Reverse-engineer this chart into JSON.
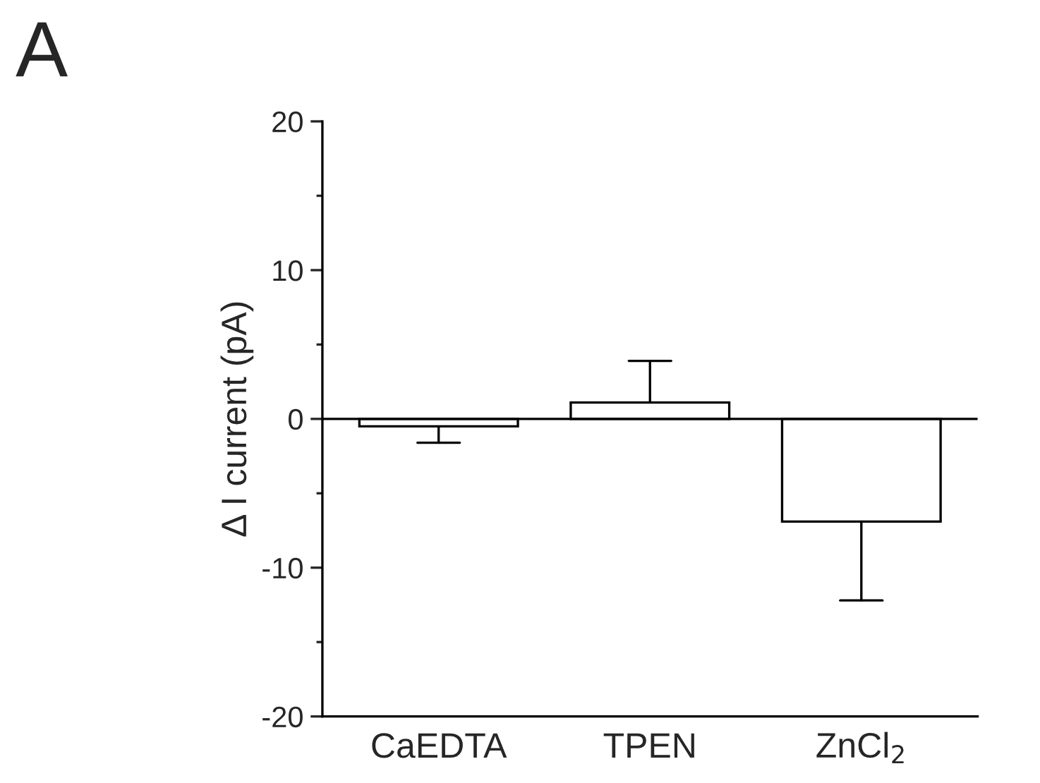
{
  "chart_data": {
    "type": "bar",
    "title": "A",
    "ylabel": "Δ I current (pA)",
    "categories": [
      "CaEDTA",
      "TPEN",
      "ZnCl$_{2}$"
    ],
    "values": [
      -0.5,
      1.1,
      -6.9
    ],
    "errors": [
      [
        -1.6,
        -0.5
      ],
      [
        1.1,
        3.9
      ],
      [
        -12.2,
        -6.9
      ]
    ],
    "color": "#ffffff",
    "ylim": [
      -20,
      20
    ],
    "yticks": [
      -20,
      {
        "value": -15,
        "label": null
      },
      -10,
      {
        "value": -5,
        "label": null
      },
      0,
      {
        "value": 5,
        "label": null
      },
      10,
      {
        "value": 15,
        "label": null
      },
      20
    ],
    "ref_lines": [
      {
        "axis": "y",
        "value": 0,
        "color": "#000000"
      }
    ],
    "grid": false,
    "legend": false
  }
}
